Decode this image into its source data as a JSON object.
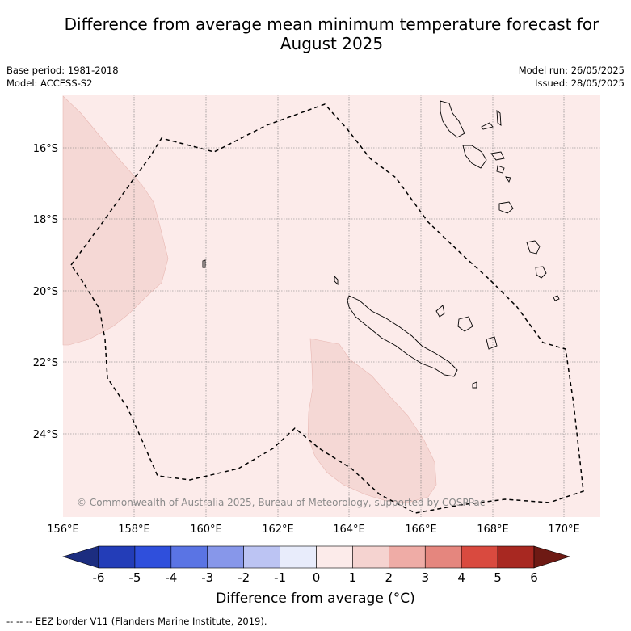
{
  "title_line1": "Difference from average mean minimum temperature forecast for",
  "title_line2": "August 2025",
  "base_period": "Base period: 1981-2018",
  "model": "Model: ACCESS-S2",
  "model_run": "Model run: 26/05/2025",
  "issued": "Issued: 28/05/2025",
  "copyright": "© Commonwealth of Australia 2025, Bureau of Meteorology, supported by COSPPac",
  "lon_ticks": [
    "156°E",
    "158°E",
    "160°E",
    "162°E",
    "164°E",
    "166°E",
    "168°E",
    "170°E"
  ],
  "lat_ticks": [
    "16°S",
    "18°S",
    "20°S",
    "22°S",
    "24°S"
  ],
  "colorbar": {
    "ticks": [
      "-6",
      "-5",
      "-4",
      "-3",
      "-2",
      "-1",
      "0",
      "1",
      "2",
      "3",
      "4",
      "5",
      "6"
    ],
    "colors": [
      "#1c2d80",
      "#233db8",
      "#2f4fdc",
      "#5a74e4",
      "#8797ea",
      "#bcc4f3",
      "#e8ecfb",
      "#fcebea",
      "#f5d3d0",
      "#efaca6",
      "#e5867e",
      "#d94a3f",
      "#a82821",
      "#6e1a14"
    ],
    "label": "Difference from average (°C)"
  },
  "map_colors": {
    "background": "#fcebea",
    "anomaly_1_2": "#f5d8d5"
  },
  "legend_note": "-- -- -- EEZ border V11 (Flanders Marine Institute, 2019)."
}
